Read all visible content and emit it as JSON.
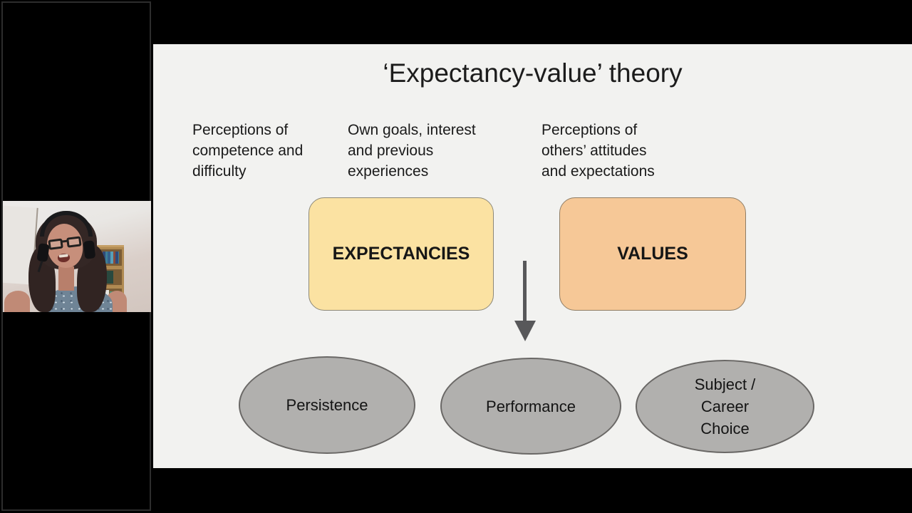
{
  "meta": {
    "description": "Webinar video frame: presenter webcam over a black panel beside a shared presentation slide"
  },
  "webcam": {
    "name": "presenter-webcam"
  },
  "slide": {
    "title": "‘Expectancy-value’ theory",
    "annotations": [
      {
        "lines": [
          "Perceptions of",
          "competence and",
          "difficulty"
        ]
      },
      {
        "lines": [
          "Own goals, interest",
          "and previous",
          "experiences"
        ]
      },
      {
        "lines": [
          "Perceptions of",
          "others’ attitudes",
          "and expectations"
        ]
      }
    ],
    "boxes": [
      {
        "label": "EXPECTANCIES",
        "fill": "#fbe2a2"
      },
      {
        "label": "VALUES",
        "fill": "#f6c897"
      }
    ],
    "arrow": {
      "direction": "down",
      "color": "#58585a"
    },
    "outcomes": [
      {
        "label": "Persistence",
        "lines": [
          "Persistence"
        ]
      },
      {
        "label": "Performance",
        "lines": [
          "Performance"
        ]
      },
      {
        "label": "Subject / Career Choice",
        "lines": [
          "Subject /",
          "Career",
          "Choice"
        ]
      }
    ],
    "colors": {
      "slide_background": "#f2f2f0",
      "outcome_fill": "#b1b0ae",
      "text": "#1c1c1c"
    }
  }
}
